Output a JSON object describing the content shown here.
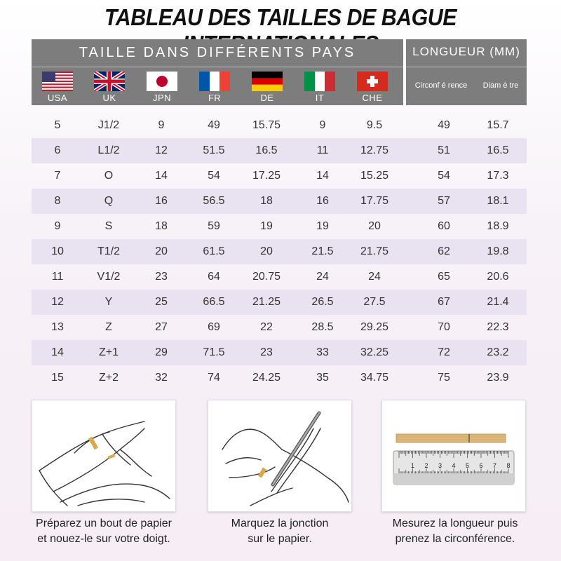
{
  "title": "TABLEAU DES TAILLES DE BAGUE INTERNATIONALES",
  "header": {
    "countries_title": "TAILLE DANS DIFFÉRENTS PAYS",
    "length_title": "LONGUEUR (MM)",
    "countries": [
      {
        "code": "USA",
        "flag": "usa-flag"
      },
      {
        "code": "UK",
        "flag": "uk-flag"
      },
      {
        "code": "JPN",
        "flag": "japan-flag"
      },
      {
        "code": "FR",
        "flag": "france-flag"
      },
      {
        "code": "DE",
        "flag": "germany-flag"
      },
      {
        "code": "IT",
        "flag": "italy-flag"
      },
      {
        "code": "CHE",
        "flag": "switzerland-flag"
      }
    ],
    "circumference": "Circonf é rence",
    "diameter": "Diam è tre"
  },
  "rows": [
    [
      "5",
      "J1/2",
      "9",
      "49",
      "15.75",
      "9",
      "9.5",
      "49",
      "15.7"
    ],
    [
      "6",
      "L1/2",
      "12",
      "51.5",
      "16.5",
      "11",
      "12.75",
      "51",
      "16.5"
    ],
    [
      "7",
      "O",
      "14",
      "54",
      "17.25",
      "14",
      "15.25",
      "54",
      "17.3"
    ],
    [
      "8",
      "Q",
      "16",
      "56.5",
      "18",
      "16",
      "17.75",
      "57",
      "18.1"
    ],
    [
      "9",
      "S",
      "18",
      "59",
      "19",
      "19",
      "20",
      "60",
      "18.9"
    ],
    [
      "10",
      "T1/2",
      "20",
      "61.5",
      "20",
      "21.5",
      "21.75",
      "62",
      "19.8"
    ],
    [
      "11",
      "V1/2",
      "23",
      "64",
      "20.75",
      "24",
      "24",
      "65",
      "20.6"
    ],
    [
      "12",
      "Y",
      "25",
      "66.5",
      "21.25",
      "26.5",
      "27.5",
      "67",
      "21.4"
    ],
    [
      "13",
      "Z",
      "27",
      "69",
      "22",
      "28.5",
      "29.25",
      "70",
      "22.3"
    ],
    [
      "14",
      "Z+1",
      "29",
      "71.5",
      "23",
      "33",
      "32.25",
      "72",
      "23.2"
    ],
    [
      "15",
      "Z+2",
      "32",
      "74",
      "24.25",
      "35",
      "34.75",
      "75",
      "23.9"
    ]
  ],
  "steps": [
    {
      "line1": "Préparez un bout de papier",
      "line2": "et nouez-le sur votre doigt."
    },
    {
      "line1": "Marquez la jonction",
      "line2": "sur le papier."
    },
    {
      "line1": "Mesurez la longueur puis",
      "line2": "prenez la circonférence."
    }
  ],
  "ruler_numbers": [
    "1",
    "2",
    "3",
    "4",
    "5",
    "6",
    "7",
    "8"
  ],
  "colors": {
    "header_grey": "#7d7d7d",
    "row_alt": "#e9e3f1",
    "paper_strip": "#d9b57a"
  }
}
